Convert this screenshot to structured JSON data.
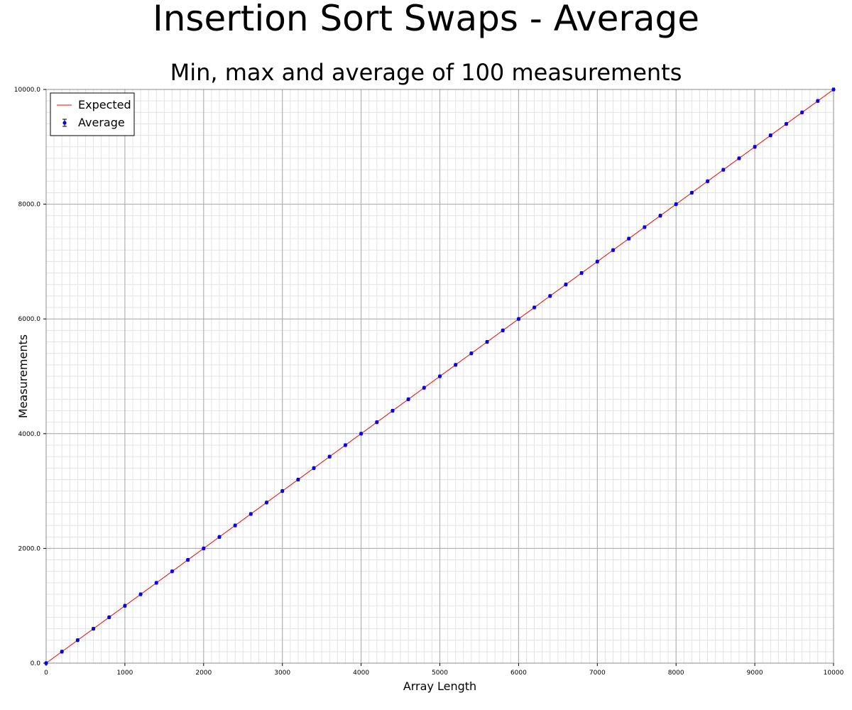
{
  "chart_data": {
    "type": "scatter",
    "title": "Insertion Sort Swaps - Average",
    "subtitle": "Min, max and average of 100 measurements",
    "xlabel": "Array Length",
    "ylabel": "Measurements",
    "xlim": [
      0,
      10000
    ],
    "ylim": [
      0,
      10000
    ],
    "x_ticks": [
      0,
      1000,
      2000,
      3000,
      4000,
      5000,
      6000,
      7000,
      8000,
      9000,
      10000
    ],
    "x_tick_labels": [
      "0",
      "1000",
      "2000",
      "3000",
      "4000",
      "5000",
      "6000",
      "7000",
      "8000",
      "9000",
      "10000"
    ],
    "y_ticks": [
      0,
      2000,
      4000,
      6000,
      8000,
      10000
    ],
    "y_tick_labels": [
      "0.0",
      "2000.0",
      "4000.0",
      "6000.0",
      "8000.0",
      "10000.0"
    ],
    "grid": true,
    "legend_position": "top-left",
    "legend": [
      "Expected",
      "Average"
    ],
    "series": [
      {
        "name": "Expected",
        "type": "line",
        "color": "#ff0000",
        "x": [
          0,
          10000
        ],
        "y": [
          0,
          10000
        ]
      },
      {
        "name": "Average",
        "type": "scatter-errorbar",
        "color": "#0000ff",
        "x": [
          0,
          200,
          400,
          600,
          800,
          1000,
          1200,
          1400,
          1600,
          1800,
          2000,
          2200,
          2400,
          2600,
          2800,
          3000,
          3200,
          3400,
          3600,
          3800,
          4000,
          4200,
          4400,
          4600,
          4800,
          5000,
          5200,
          5400,
          5600,
          5800,
          6000,
          6200,
          6400,
          6600,
          6800,
          7000,
          7200,
          7400,
          7600,
          7800,
          8000,
          8200,
          8400,
          8600,
          8800,
          9000,
          9200,
          9400,
          9600,
          9800,
          10000
        ],
        "y": [
          0,
          200,
          400,
          600,
          800,
          1000,
          1200,
          1400,
          1600,
          1800,
          2000,
          2200,
          2400,
          2600,
          2800,
          3000,
          3200,
          3400,
          3600,
          3800,
          4000,
          4200,
          4400,
          4600,
          4800,
          5000,
          5200,
          5400,
          5600,
          5800,
          6000,
          6200,
          6400,
          6600,
          6800,
          7000,
          7200,
          7400,
          7600,
          7800,
          8000,
          8200,
          8400,
          8600,
          8800,
          9000,
          9200,
          9400,
          9600,
          9800,
          10000
        ]
      }
    ]
  }
}
